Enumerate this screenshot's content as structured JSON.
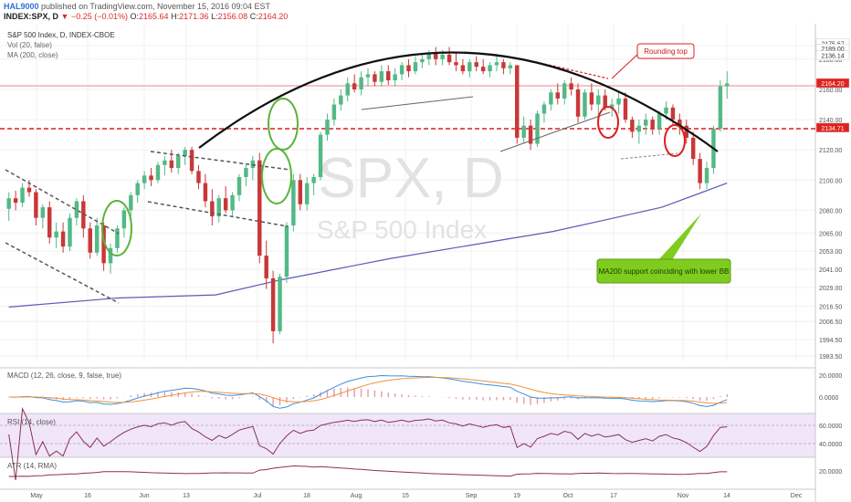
{
  "header": {
    "author": "HAL9000",
    "published": "published on TradingView.com, November 15, 2016 09:04 EST",
    "symbol": "INDEX:SPX, D",
    "change": "▼ −0.25 (−0.01%)",
    "ohlc": {
      "o_label": "O:",
      "o": "2165.64",
      "h_label": "H:",
      "h": "2171.36",
      "l_label": "L:",
      "l": "2156.08",
      "c_label": "C:",
      "c": "2164.20"
    }
  },
  "legend": {
    "line1": "S&P 500 Index, D, INDEX-CBOE",
    "line2": "Vol (20, false)",
    "line3": "MA (200, close)"
  },
  "watermark": {
    "big": "SPX, D",
    "small": "S&P 500 Index"
  },
  "annotations": {
    "rounding_top": "Rounding top",
    "ma200_note": "MA200 support coinciding with lower BB"
  },
  "panes": {
    "macd_label": "MACD (12, 26, close, 9, false, true)",
    "rsi_label": "RSI (14, close)",
    "atr_label": "ATR (14, RMA)"
  },
  "colors": {
    "up": "#53b987",
    "down": "#c83838",
    "ma": "#5a5ab8",
    "macd": "#3d8fdc",
    "signal": "#f0923b",
    "rsi": "#8b2f5a",
    "atr": "#8b2f5a",
    "support": "#e01c1c",
    "green_circle": "#5ab33a",
    "badge": "#e0211f"
  },
  "chart_data": {
    "type": "candlestick",
    "title": "S&P 500 Index, D, INDEX-CBOE",
    "ylim": [
      1980,
      2195
    ],
    "y_ticks": [
      "2189.00",
      "2180.00",
      "2160.00",
      "2140.00",
      "2120.00",
      "2100.00",
      "2080.00",
      "2065.00",
      "2053.00",
      "2041.00",
      "2029.00",
      "2016.50",
      "2006.50",
      "1994.50",
      "1983.50"
    ],
    "price_badges": [
      {
        "label": "2175.67",
        "value": 2190.5
      },
      {
        "label": "2189.00",
        "value": 2187
      },
      {
        "label": "2136.14",
        "value": 2182.5
      },
      {
        "label": "2164.20",
        "value": 2164.2
      },
      {
        "label": "2134.71",
        "value": 2134.71
      }
    ],
    "x_ticks": [
      "May",
      "16",
      "Jun",
      "13",
      "Jul",
      "18",
      "Aug",
      "15",
      "Sep",
      "19",
      "Oct",
      "17",
      "Nov",
      "14",
      "Dec"
    ],
    "candles": [
      [
        2081,
        2092,
        2073,
        2088
      ],
      [
        2088,
        2093,
        2080,
        2085
      ],
      [
        2085,
        2098,
        2082,
        2095
      ],
      [
        2095,
        2100,
        2089,
        2092
      ],
      [
        2092,
        2094,
        2070,
        2075
      ],
      [
        2075,
        2084,
        2068,
        2082
      ],
      [
        2082,
        2086,
        2058,
        2062
      ],
      [
        2062,
        2072,
        2055,
        2066
      ],
      [
        2066,
        2072,
        2052,
        2056
      ],
      [
        2056,
        2078,
        2053,
        2075
      ],
      [
        2075,
        2088,
        2070,
        2086
      ],
      [
        2086,
        2090,
        2062,
        2068
      ],
      [
        2068,
        2072,
        2048,
        2052
      ],
      [
        2052,
        2075,
        2050,
        2070
      ],
      [
        2070,
        2072,
        2040,
        2045
      ],
      [
        2045,
        2058,
        2038,
        2055
      ],
      [
        2055,
        2070,
        2052,
        2068
      ],
      [
        2068,
        2082,
        2062,
        2080
      ],
      [
        2080,
        2092,
        2076,
        2090
      ],
      [
        2090,
        2100,
        2085,
        2098
      ],
      [
        2098,
        2106,
        2094,
        2103
      ],
      [
        2103,
        2108,
        2096,
        2100
      ],
      [
        2100,
        2112,
        2098,
        2110
      ],
      [
        2110,
        2116,
        2103,
        2113
      ],
      [
        2113,
        2120,
        2105,
        2108
      ],
      [
        2108,
        2118,
        2104,
        2116
      ],
      [
        2116,
        2122,
        2110,
        2120
      ],
      [
        2120,
        2122,
        2104,
        2106
      ],
      [
        2106,
        2110,
        2094,
        2098
      ],
      [
        2098,
        2104,
        2082,
        2086
      ],
      [
        2086,
        2094,
        2070,
        2076
      ],
      [
        2076,
        2090,
        2072,
        2088
      ],
      [
        2088,
        2096,
        2078,
        2080
      ],
      [
        2080,
        2092,
        2076,
        2090
      ],
      [
        2090,
        2104,
        2086,
        2102
      ],
      [
        2102,
        2110,
        2096,
        2108
      ],
      [
        2108,
        2116,
        2100,
        2113
      ],
      [
        2113,
        2118,
        2045,
        2050
      ],
      [
        2050,
        2060,
        2028,
        2035
      ],
      [
        2035,
        2040,
        1992,
        2000
      ],
      [
        2000,
        2038,
        1998,
        2036
      ],
      [
        2036,
        2072,
        2032,
        2070
      ],
      [
        2070,
        2104,
        2066,
        2100
      ],
      [
        2100,
        2104,
        2080,
        2084
      ],
      [
        2084,
        2102,
        2080,
        2098
      ],
      [
        2098,
        2104,
        2090,
        2102
      ],
      [
        2102,
        2132,
        2100,
        2130
      ],
      [
        2130,
        2144,
        2126,
        2140
      ],
      [
        2140,
        2154,
        2136,
        2150
      ],
      [
        2150,
        2160,
        2146,
        2156
      ],
      [
        2156,
        2168,
        2152,
        2164
      ],
      [
        2164,
        2170,
        2158,
        2160
      ],
      [
        2160,
        2172,
        2156,
        2168
      ],
      [
        2168,
        2174,
        2162,
        2170
      ],
      [
        2170,
        2172,
        2162,
        2165
      ],
      [
        2165,
        2176,
        2162,
        2172
      ],
      [
        2172,
        2176,
        2163,
        2166
      ],
      [
        2166,
        2174,
        2162,
        2170
      ],
      [
        2170,
        2178,
        2166,
        2176
      ],
      [
        2176,
        2180,
        2168,
        2172
      ],
      [
        2172,
        2182,
        2170,
        2178
      ],
      [
        2178,
        2184,
        2174,
        2180
      ],
      [
        2180,
        2186,
        2176,
        2184
      ],
      [
        2184,
        2188,
        2176,
        2180
      ],
      [
        2180,
        2186,
        2176,
        2183
      ],
      [
        2183,
        2188,
        2176,
        2178
      ],
      [
        2178,
        2184,
        2172,
        2176
      ],
      [
        2176,
        2180,
        2170,
        2172
      ],
      [
        2172,
        2180,
        2168,
        2178
      ],
      [
        2178,
        2182,
        2172,
        2175
      ],
      [
        2175,
        2180,
        2170,
        2172
      ],
      [
        2172,
        2178,
        2168,
        2176
      ],
      [
        2176,
        2182,
        2172,
        2178
      ],
      [
        2178,
        2180,
        2170,
        2174
      ],
      [
        2174,
        2178,
        2170,
        2176
      ],
      [
        2176,
        2176,
        2124,
        2128
      ],
      [
        2128,
        2142,
        2124,
        2136
      ],
      [
        2136,
        2140,
        2120,
        2124
      ],
      [
        2124,
        2146,
        2122,
        2144
      ],
      [
        2144,
        2152,
        2138,
        2150
      ],
      [
        2150,
        2160,
        2146,
        2158
      ],
      [
        2158,
        2164,
        2150,
        2154
      ],
      [
        2154,
        2166,
        2150,
        2164
      ],
      [
        2164,
        2168,
        2156,
        2160
      ],
      [
        2160,
        2164,
        2138,
        2142
      ],
      [
        2142,
        2160,
        2140,
        2158
      ],
      [
        2158,
        2164,
        2146,
        2150
      ],
      [
        2150,
        2160,
        2140,
        2156
      ],
      [
        2156,
        2160,
        2146,
        2148
      ],
      [
        2148,
        2154,
        2142,
        2150
      ],
      [
        2150,
        2158,
        2144,
        2154
      ],
      [
        2154,
        2158,
        2138,
        2140
      ],
      [
        2140,
        2142,
        2128,
        2132
      ],
      [
        2132,
        2140,
        2124,
        2136
      ],
      [
        2136,
        2144,
        2130,
        2140
      ],
      [
        2140,
        2142,
        2130,
        2134
      ],
      [
        2134,
        2146,
        2130,
        2144
      ],
      [
        2144,
        2152,
        2140,
        2148
      ],
      [
        2148,
        2150,
        2136,
        2140
      ],
      [
        2140,
        2144,
        2130,
        2136
      ],
      [
        2136,
        2140,
        2124,
        2128
      ],
      [
        2128,
        2132,
        2110,
        2114
      ],
      [
        2114,
        2118,
        2094,
        2098
      ],
      [
        2098,
        2112,
        2094,
        2108
      ],
      [
        2108,
        2136,
        2104,
        2134
      ],
      [
        2134,
        2166,
        2132,
        2162
      ],
      [
        2162,
        2172,
        2154,
        2164
      ]
    ],
    "ma200": [
      [
        0,
        2016
      ],
      [
        20,
        2022
      ],
      [
        38,
        2024
      ],
      [
        50,
        2034
      ],
      [
        70,
        2048
      ],
      [
        90,
        2060
      ],
      [
        100,
        2066
      ],
      [
        110,
        2074
      ],
      [
        120,
        2082
      ],
      [
        132,
        2098
      ]
    ],
    "macd_pane": {
      "label": "MACD (12, 26, close, 9, false, true)",
      "y_ticks": [
        "20.0000",
        "0.0000"
      ]
    },
    "rsi_pane": {
      "label": "RSI (14, close)",
      "y_ticks": [
        "60.0000",
        "40.0000"
      ]
    },
    "atr_pane": {
      "label": "ATR (14, RMA)",
      "y_ticks": [
        "20.0000"
      ]
    }
  }
}
